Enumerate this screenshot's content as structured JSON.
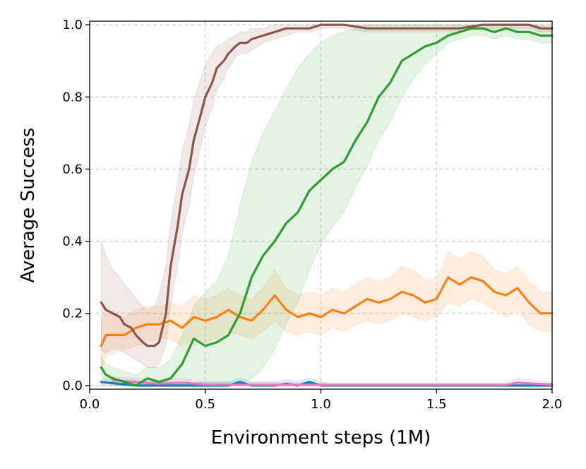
{
  "chart_data": {
    "type": "line",
    "title": "",
    "xlabel": "Environment steps (1M)",
    "ylabel": "Average Success",
    "xlim": [
      0.0,
      2.0
    ],
    "ylim": [
      -0.01,
      1.01
    ],
    "xticks": [
      "0.0",
      "0.5",
      "1.0",
      "1.5",
      "2.0"
    ],
    "yticks": [
      "0.0",
      "0.2",
      "0.4",
      "0.6",
      "0.8",
      "1.0"
    ],
    "grid": true,
    "legend": "none",
    "series": [
      {
        "color": "#1f77b4",
        "x": [
          0.05,
          0.2,
          0.4,
          0.6,
          0.65,
          0.7,
          0.8,
          0.85,
          0.9,
          0.95,
          1.0,
          1.1,
          1.3,
          1.5,
          1.7,
          1.9,
          2.0
        ],
        "y": [
          0.01,
          0.0,
          0.0,
          0.0,
          0.01,
          0.0,
          0.0,
          0.005,
          0.0,
          0.01,
          0.0,
          0.0,
          0.0,
          0.0,
          0.0,
          0.0,
          0.0
        ],
        "lower": [
          0.0,
          0.0,
          0.0,
          0.0,
          0.0,
          0.0,
          0.0,
          0.0,
          0.0,
          0.0,
          0.0,
          0.0,
          0.0,
          0.0,
          0.0,
          0.0,
          0.0
        ],
        "upper": [
          0.02,
          0.01,
          0.01,
          0.01,
          0.02,
          0.01,
          0.01,
          0.015,
          0.01,
          0.02,
          0.01,
          0.0,
          0.0,
          0.0,
          0.0,
          0.0,
          0.0
        ]
      },
      {
        "color": "#e377c2",
        "x": [
          0.1,
          0.2,
          0.3,
          0.4,
          0.5,
          0.7,
          0.9,
          1.1,
          1.3,
          1.5,
          1.7,
          1.8,
          1.85,
          1.9,
          2.0
        ],
        "y": [
          0.015,
          0.01,
          0.005,
          0.008,
          0.003,
          0.002,
          0.002,
          0.002,
          0.002,
          0.002,
          0.002,
          0.002,
          0.008,
          0.006,
          0.003
        ],
        "lower": [
          0.005,
          0.0,
          0.0,
          0.0,
          0.0,
          0.0,
          0.0,
          0.0,
          0.0,
          0.0,
          0.0,
          0.0,
          0.0,
          0.0,
          0.0
        ],
        "upper": [
          0.025,
          0.02,
          0.015,
          0.02,
          0.01,
          0.008,
          0.008,
          0.008,
          0.008,
          0.008,
          0.008,
          0.008,
          0.02,
          0.016,
          0.01
        ]
      },
      {
        "color": "#ff7f0e",
        "x": [
          0.05,
          0.07,
          0.1,
          0.15,
          0.2,
          0.25,
          0.3,
          0.35,
          0.4,
          0.45,
          0.5,
          0.55,
          0.6,
          0.65,
          0.7,
          0.75,
          0.8,
          0.85,
          0.9,
          0.95,
          1.0,
          1.05,
          1.1,
          1.15,
          1.2,
          1.25,
          1.3,
          1.35,
          1.4,
          1.45,
          1.5,
          1.55,
          1.6,
          1.65,
          1.7,
          1.75,
          1.8,
          1.85,
          1.9,
          1.95,
          2.0
        ],
        "y": [
          0.11,
          0.14,
          0.14,
          0.14,
          0.16,
          0.17,
          0.17,
          0.18,
          0.16,
          0.19,
          0.18,
          0.19,
          0.21,
          0.19,
          0.18,
          0.21,
          0.25,
          0.21,
          0.19,
          0.2,
          0.19,
          0.21,
          0.2,
          0.22,
          0.24,
          0.23,
          0.24,
          0.26,
          0.25,
          0.23,
          0.24,
          0.3,
          0.28,
          0.3,
          0.29,
          0.26,
          0.25,
          0.27,
          0.23,
          0.2,
          0.2
        ],
        "lower": [
          0.05,
          0.08,
          0.09,
          0.1,
          0.11,
          0.12,
          0.13,
          0.13,
          0.11,
          0.13,
          0.12,
          0.13,
          0.15,
          0.14,
          0.13,
          0.15,
          0.18,
          0.15,
          0.14,
          0.15,
          0.14,
          0.16,
          0.15,
          0.17,
          0.18,
          0.17,
          0.18,
          0.2,
          0.19,
          0.18,
          0.19,
          0.23,
          0.22,
          0.24,
          0.23,
          0.21,
          0.19,
          0.21,
          0.17,
          0.15,
          0.15
        ],
        "upper": [
          0.18,
          0.2,
          0.2,
          0.19,
          0.21,
          0.22,
          0.22,
          0.23,
          0.22,
          0.25,
          0.24,
          0.25,
          0.27,
          0.25,
          0.24,
          0.27,
          0.32,
          0.27,
          0.25,
          0.26,
          0.25,
          0.27,
          0.26,
          0.28,
          0.3,
          0.29,
          0.3,
          0.33,
          0.32,
          0.29,
          0.3,
          0.37,
          0.35,
          0.37,
          0.36,
          0.32,
          0.31,
          0.33,
          0.29,
          0.26,
          0.26
        ]
      },
      {
        "color": "#2ca02c",
        "x": [
          0.05,
          0.07,
          0.1,
          0.15,
          0.2,
          0.25,
          0.3,
          0.35,
          0.4,
          0.45,
          0.5,
          0.55,
          0.6,
          0.65,
          0.7,
          0.75,
          0.8,
          0.85,
          0.9,
          0.95,
          1.0,
          1.05,
          1.1,
          1.15,
          1.2,
          1.25,
          1.3,
          1.35,
          1.4,
          1.45,
          1.5,
          1.55,
          1.6,
          1.65,
          1.7,
          1.75,
          1.8,
          1.85,
          1.9,
          1.95,
          2.0
        ],
        "y": [
          0.05,
          0.03,
          0.02,
          0.01,
          0.0,
          0.02,
          0.01,
          0.02,
          0.06,
          0.13,
          0.11,
          0.12,
          0.14,
          0.2,
          0.3,
          0.36,
          0.4,
          0.45,
          0.48,
          0.54,
          0.57,
          0.6,
          0.62,
          0.68,
          0.73,
          0.8,
          0.84,
          0.9,
          0.92,
          0.94,
          0.95,
          0.97,
          0.98,
          0.99,
          0.99,
          0.98,
          0.99,
          0.98,
          0.98,
          0.97,
          0.97
        ],
        "lower": [
          0.03,
          0.01,
          0.0,
          0.0,
          0.0,
          0.0,
          0.0,
          0.0,
          0.0,
          0.02,
          0.0,
          0.0,
          0.0,
          0.0,
          0.02,
          0.05,
          0.1,
          0.17,
          0.23,
          0.32,
          0.39,
          0.44,
          0.48,
          0.55,
          0.61,
          0.68,
          0.73,
          0.8,
          0.85,
          0.89,
          0.92,
          0.95,
          0.96,
          0.97,
          0.97,
          0.96,
          0.97,
          0.96,
          0.96,
          0.95,
          0.95
        ],
        "upper": [
          0.08,
          0.06,
          0.05,
          0.04,
          0.03,
          0.05,
          0.05,
          0.07,
          0.14,
          0.22,
          0.26,
          0.29,
          0.36,
          0.5,
          0.62,
          0.7,
          0.76,
          0.82,
          0.88,
          0.92,
          0.95,
          0.97,
          0.98,
          0.99,
          1.0,
          1.0,
          1.0,
          1.0,
          1.0,
          1.0,
          1.0,
          1.0,
          1.0,
          1.0,
          1.0,
          1.0,
          1.0,
          1.0,
          1.0,
          1.0,
          0.99
        ]
      },
      {
        "color": "#8c564b",
        "x": [
          0.05,
          0.07,
          0.1,
          0.13,
          0.15,
          0.18,
          0.2,
          0.23,
          0.25,
          0.28,
          0.3,
          0.33,
          0.35,
          0.38,
          0.4,
          0.43,
          0.45,
          0.48,
          0.5,
          0.53,
          0.55,
          0.58,
          0.6,
          0.63,
          0.65,
          0.68,
          0.7,
          0.75,
          0.8,
          0.85,
          0.9,
          0.95,
          1.0,
          1.05,
          1.1,
          1.2,
          1.3,
          1.4,
          1.5,
          1.6,
          1.7,
          1.8,
          1.9,
          1.95,
          2.0
        ],
        "y": [
          0.23,
          0.21,
          0.2,
          0.19,
          0.17,
          0.16,
          0.14,
          0.12,
          0.11,
          0.11,
          0.12,
          0.2,
          0.33,
          0.44,
          0.53,
          0.6,
          0.68,
          0.75,
          0.8,
          0.84,
          0.88,
          0.9,
          0.92,
          0.94,
          0.95,
          0.95,
          0.96,
          0.97,
          0.98,
          0.99,
          0.99,
          0.99,
          1.0,
          1.0,
          1.0,
          0.99,
          0.99,
          0.99,
          0.99,
          0.99,
          1.0,
          1.0,
          1.0,
          0.99,
          0.99
        ],
        "lower": [
          0.1,
          0.09,
          0.1,
          0.1,
          0.09,
          0.08,
          0.07,
          0.06,
          0.05,
          0.05,
          0.06,
          0.11,
          0.22,
          0.33,
          0.42,
          0.5,
          0.58,
          0.66,
          0.72,
          0.77,
          0.82,
          0.85,
          0.88,
          0.91,
          0.92,
          0.92,
          0.93,
          0.95,
          0.96,
          0.97,
          0.98,
          0.98,
          0.99,
          0.99,
          0.99,
          0.98,
          0.98,
          0.98,
          0.98,
          0.98,
          0.99,
          0.99,
          0.99,
          0.98,
          0.98
        ],
        "upper": [
          0.4,
          0.36,
          0.32,
          0.3,
          0.28,
          0.26,
          0.24,
          0.22,
          0.21,
          0.22,
          0.25,
          0.33,
          0.45,
          0.56,
          0.65,
          0.72,
          0.79,
          0.85,
          0.89,
          0.92,
          0.94,
          0.95,
          0.96,
          0.97,
          0.98,
          0.98,
          0.99,
          0.99,
          1.0,
          1.0,
          1.0,
          1.0,
          1.0,
          1.0,
          1.0,
          1.0,
          1.0,
          1.0,
          1.0,
          1.0,
          1.0,
          1.0,
          1.0,
          1.0,
          1.0
        ]
      }
    ]
  }
}
